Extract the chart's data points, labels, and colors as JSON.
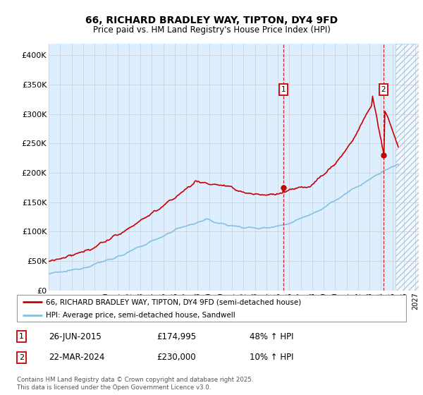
{
  "title": "66, RICHARD BRADLEY WAY, TIPTON, DY4 9FD",
  "subtitle": "Price paid vs. HM Land Registry's House Price Index (HPI)",
  "ylabel_ticks": [
    "£0",
    "£50K",
    "£100K",
    "£150K",
    "£200K",
    "£250K",
    "£300K",
    "£350K",
    "£400K"
  ],
  "ytick_values": [
    0,
    50000,
    100000,
    150000,
    200000,
    250000,
    300000,
    350000,
    400000
  ],
  "ylim": [
    0,
    420000
  ],
  "xlim_start": 1995.0,
  "xlim_end": 2027.3,
  "marker1_x": 2015.49,
  "marker1_y": 174995,
  "marker1_label": "1",
  "marker1_date": "26-JUN-2015",
  "marker1_price": "£174,995",
  "marker1_hpi": "48% ↑ HPI",
  "marker2_x": 2024.22,
  "marker2_y": 230000,
  "marker2_label": "2",
  "marker2_date": "22-MAR-2024",
  "marker2_price": "£230,000",
  "marker2_hpi": "10% ↑ HPI",
  "red_line_color": "#cc0000",
  "blue_line_color": "#85c1e0",
  "shade_color": "#ddeeff",
  "grid_color": "#cccccc",
  "future_shade_start": 2025.25,
  "light_shade_start": 2018.0,
  "legend_line1": "66, RICHARD BRADLEY WAY, TIPTON, DY4 9FD (semi-detached house)",
  "legend_line2": "HPI: Average price, semi-detached house, Sandwell",
  "footer1": "Contains HM Land Registry data © Crown copyright and database right 2025.",
  "footer2": "This data is licensed under the Open Government Licence v3.0."
}
